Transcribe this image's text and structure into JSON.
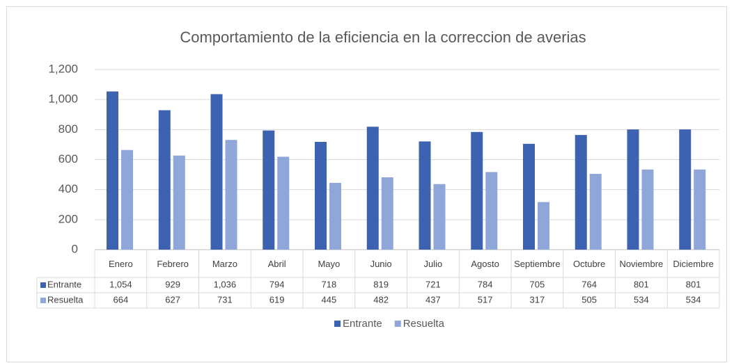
{
  "chart_data": {
    "type": "bar",
    "title": "Comportamiento de la eficiencia en la correccion de averias",
    "categories": [
      "Enero",
      "Febrero",
      "Marzo",
      "Abril",
      "Mayo",
      "Junio",
      "Julio",
      "Agosto",
      "Septiembre",
      "Octubre",
      "Noviembre",
      "Diciembre"
    ],
    "series": [
      {
        "name": "Entrante",
        "color": "#3c62b0",
        "values": [
          1054,
          929,
          1036,
          794,
          718,
          819,
          721,
          784,
          705,
          764,
          801,
          801
        ],
        "value_labels": [
          "1,054",
          "929",
          "1,036",
          "794",
          "718",
          "819",
          "721",
          "784",
          "705",
          "764",
          "801",
          "801"
        ]
      },
      {
        "name": "Resuelta",
        "color": "#8ea6d8",
        "values": [
          664,
          627,
          731,
          619,
          445,
          482,
          437,
          517,
          317,
          505,
          534,
          534
        ],
        "value_labels": [
          "664",
          "627",
          "731",
          "619",
          "445",
          "482",
          "437",
          "517",
          "317",
          "505",
          "534",
          "534"
        ]
      }
    ],
    "ylim": [
      0,
      1200
    ],
    "yticks": [
      0,
      200,
      400,
      600,
      800,
      {
        "value": 1000,
        "label": "1,000"
      },
      {
        "value": 1200,
        "label": "1,200"
      }
    ],
    "grid": true,
    "legend": "bottom"
  }
}
